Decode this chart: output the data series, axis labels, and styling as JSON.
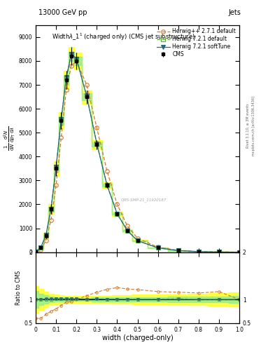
{
  "top_label_left": "13000 GeV pp",
  "top_label_right": "Jets",
  "right_label_top": "Rivet 3.1.10, ≥ 3M events",
  "right_label_bot": "mcplots.cern.ch [arXiv:1306.3436]",
  "watermark": "CMS-SMP-21_11920187",
  "xlabel": "width (charged-only)",
  "ylabel_ratio": "Ratio to CMS",
  "plot_title": "Width$\\lambda$_1$^1$ (charged only) (CMS jet substructure)",
  "x_pts": [
    0.0,
    0.025,
    0.05,
    0.075,
    0.1,
    0.125,
    0.15,
    0.175,
    0.2,
    0.25,
    0.3,
    0.35,
    0.4,
    0.45,
    0.5,
    0.6,
    0.7,
    0.8,
    0.9,
    1.0
  ],
  "cms_y": [
    20,
    200,
    700,
    1800,
    3500,
    5500,
    7200,
    8200,
    8000,
    6500,
    4500,
    2800,
    1600,
    900,
    480,
    180,
    65,
    22,
    6,
    1
  ],
  "cms_yerr_lo": [
    8,
    60,
    120,
    200,
    300,
    350,
    380,
    380,
    360,
    280,
    190,
    120,
    80,
    50,
    30,
    15,
    8,
    4,
    2,
    1
  ],
  "cms_yerr_hi": [
    8,
    60,
    120,
    200,
    300,
    350,
    380,
    380,
    360,
    280,
    190,
    120,
    80,
    50,
    30,
    15,
    8,
    4,
    2,
    1
  ],
  "hpp_y": [
    12,
    120,
    480,
    1350,
    2800,
    4800,
    6800,
    7800,
    8000,
    7000,
    5200,
    3400,
    2000,
    1100,
    580,
    210,
    75,
    25,
    7,
    1
  ],
  "h721_y": [
    20,
    200,
    700,
    1800,
    3550,
    5550,
    7300,
    8300,
    8100,
    6550,
    4550,
    2820,
    1610,
    905,
    482,
    181,
    66,
    22,
    6,
    1
  ],
  "h721s_y": [
    20,
    200,
    710,
    1820,
    3560,
    5560,
    7310,
    8290,
    8090,
    6540,
    4540,
    2810,
    1605,
    902,
    480,
    180,
    65,
    22,
    6,
    1
  ],
  "cms_color": "black",
  "hpp_color": "#d4792a",
  "h721_color": "#5aaa3a",
  "h721s_color": "#2a6a7a",
  "ylim": [
    0,
    9500
  ],
  "yticks": [
    0,
    1000,
    2000,
    3000,
    4000,
    5000,
    6000,
    7000,
    8000,
    9000
  ],
  "xlim": [
    0.0,
    1.0
  ],
  "xticks": [
    0.0,
    0.1,
    0.2,
    0.3,
    0.4,
    0.5,
    0.6,
    0.7,
    0.8,
    0.9,
    1.0
  ],
  "ratio_ylim": [
    0.5,
    2.0
  ],
  "ratio_yticks": [
    0.5,
    1.0,
    2.0
  ],
  "band_yellow_lo": [
    0.72,
    0.78,
    0.84,
    0.88,
    0.9,
    0.91,
    0.92,
    0.93,
    0.93,
    0.93,
    0.92,
    0.92,
    0.91,
    0.91,
    0.9,
    0.9,
    0.89,
    0.88,
    0.87,
    0.85
  ],
  "band_yellow_hi": [
    1.28,
    1.22,
    1.16,
    1.12,
    1.1,
    1.09,
    1.08,
    1.07,
    1.07,
    1.07,
    1.08,
    1.08,
    1.09,
    1.09,
    1.1,
    1.1,
    1.11,
    1.12,
    1.13,
    1.15
  ],
  "band_green_lo": [
    0.82,
    0.88,
    0.91,
    0.94,
    0.95,
    0.955,
    0.96,
    0.965,
    0.965,
    0.965,
    0.96,
    0.96,
    0.955,
    0.955,
    0.95,
    0.95,
    0.945,
    0.94,
    0.935,
    0.93
  ],
  "band_green_hi": [
    1.18,
    1.12,
    1.09,
    1.06,
    1.05,
    1.045,
    1.04,
    1.035,
    1.035,
    1.035,
    1.04,
    1.04,
    1.045,
    1.045,
    1.05,
    1.05,
    1.055,
    1.06,
    1.065,
    1.07
  ]
}
